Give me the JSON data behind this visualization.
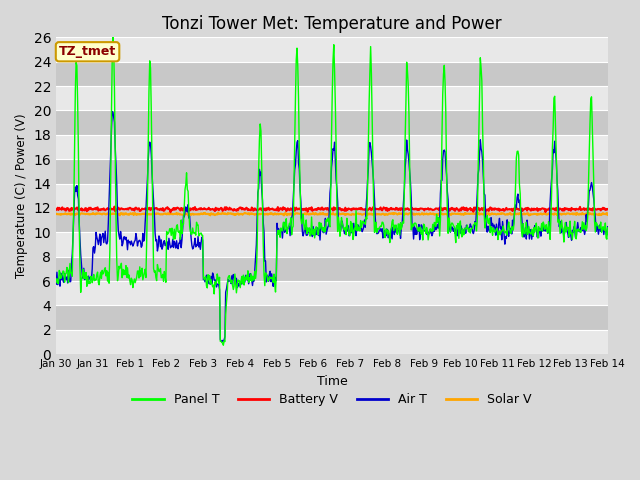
{
  "title": "Tonzi Tower Met: Temperature and Power",
  "xlabel": "Time",
  "ylabel": "Temperature (C) / Power (V)",
  "xlim_days": [
    0,
    15
  ],
  "ylim": [
    0,
    26
  ],
  "yticks": [
    0,
    2,
    4,
    6,
    8,
    10,
    12,
    14,
    16,
    18,
    20,
    22,
    24,
    26
  ],
  "xtick_labels": [
    "Jan 30",
    "Jan 31",
    "Feb 1",
    "Feb 2",
    "Feb 3",
    "Feb 4",
    "Feb 5",
    "Feb 6",
    "Feb 7",
    "Feb 8",
    "Feb 9",
    "Feb 10",
    "Feb 11",
    "Feb 12",
    "Feb 13",
    "Feb 14"
  ],
  "xtick_positions": [
    0,
    1,
    2,
    3,
    4,
    5,
    6,
    7,
    8,
    9,
    10,
    11,
    12,
    13,
    14,
    15
  ],
  "panel_t_color": "#00FF00",
  "battery_v_color": "#FF0000",
  "air_t_color": "#0000CC",
  "solar_v_color": "#FFA500",
  "background_color": "#D8D8D8",
  "plot_bg_color": "#D8D8D8",
  "band_light_color": "#E8E8E8",
  "band_dark_color": "#C8C8C8",
  "grid_color": "#FFFFFF",
  "legend_label": "TZ_tmet",
  "legend_label_color": "#8B0000",
  "legend_box_facecolor": "#FFFFCC",
  "legend_box_edgecolor": "#CC9900",
  "battery_v_base": 11.9,
  "solar_v_base": 11.5,
  "title_fontsize": 12,
  "figwidth": 6.4,
  "figheight": 4.8,
  "dpi": 100
}
